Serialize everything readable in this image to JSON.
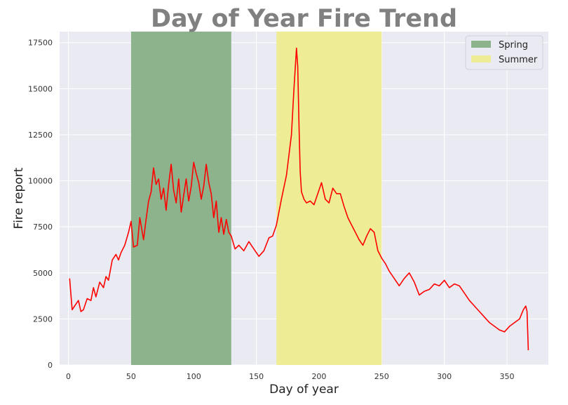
{
  "chart_data": {
    "type": "line",
    "title": "Day of Year Fire Trend",
    "xlabel": "Day of year",
    "ylabel": "Fire report",
    "xlim": [
      -7,
      383
    ],
    "ylim": [
      0,
      18100
    ],
    "xticks": [
      0,
      50,
      100,
      150,
      200,
      250,
      300,
      350
    ],
    "yticks": [
      0,
      2500,
      5000,
      7500,
      10000,
      12500,
      15000,
      17500
    ],
    "grid": true,
    "background": "#EAEAF2",
    "legend_position": "top-right",
    "spans": [
      {
        "name": "Spring",
        "x_start": 50,
        "x_end": 130,
        "color": "#8DB38D"
      },
      {
        "name": "Summer",
        "x_start": 166,
        "x_end": 250,
        "color": "#EEEC95"
      }
    ],
    "series": [
      {
        "color": "#FF0000",
        "x": [
          1,
          3,
          5,
          8,
          10,
          12,
          15,
          18,
          20,
          22,
          25,
          28,
          30,
          32,
          35,
          38,
          40,
          42,
          45,
          48,
          50,
          52,
          55,
          57,
          60,
          62,
          64,
          66,
          68,
          70,
          72,
          74,
          76,
          78,
          80,
          82,
          84,
          86,
          88,
          90,
          92,
          94,
          96,
          98,
          100,
          102,
          104,
          106,
          108,
          110,
          112,
          114,
          116,
          118,
          120,
          122,
          124,
          126,
          128,
          130,
          133,
          136,
          140,
          144,
          148,
          152,
          156,
          160,
          163,
          166,
          170,
          174,
          178,
          180,
          182,
          183,
          184,
          185,
          186,
          188,
          190,
          193,
          196,
          199,
          202,
          205,
          208,
          211,
          214,
          217,
          220,
          223,
          226,
          229,
          232,
          235,
          238,
          241,
          244,
          247,
          250,
          253,
          256,
          260,
          264,
          268,
          272,
          276,
          280,
          284,
          288,
          292,
          296,
          300,
          304,
          308,
          312,
          316,
          320,
          324,
          328,
          332,
          336,
          340,
          344,
          348,
          352,
          356,
          360,
          363,
          365,
          366,
          367
        ],
        "y": [
          4700,
          3000,
          3200,
          3500,
          2900,
          3000,
          3600,
          3500,
          4200,
          3700,
          4500,
          4200,
          4800,
          4600,
          5700,
          6000,
          5700,
          6100,
          6500,
          7200,
          7800,
          6400,
          6500,
          8000,
          6800,
          7900,
          8900,
          9400,
          10700,
          9800,
          10100,
          9000,
          9600,
          8400,
          9800,
          10900,
          9500,
          8800,
          10100,
          8300,
          9200,
          10100,
          8900,
          9700,
          11000,
          10400,
          9900,
          9000,
          9700,
          10900,
          9900,
          9300,
          8000,
          8900,
          7200,
          8000,
          7100,
          7900,
          7200,
          7000,
          6300,
          6500,
          6200,
          6700,
          6300,
          5900,
          6200,
          6900,
          7000,
          7600,
          9000,
          10300,
          12500,
          15000,
          17200,
          16200,
          13000,
          10500,
          9400,
          9000,
          8800,
          8900,
          8700,
          9300,
          9900,
          9000,
          8800,
          9600,
          9300,
          9300,
          8600,
          8000,
          7600,
          7200,
          6800,
          6500,
          7000,
          7400,
          7200,
          6200,
          5800,
          5500,
          5100,
          4700,
          4300,
          4700,
          5000,
          4500,
          3800,
          4000,
          4100,
          4400,
          4300,
          4600,
          4200,
          4400,
          4300,
          3900,
          3500,
          3200,
          2900,
          2600,
          2300,
          2100,
          1900,
          1800,
          2100,
          2300,
          2500,
          3000,
          3200,
          2900,
          800
        ]
      }
    ]
  }
}
